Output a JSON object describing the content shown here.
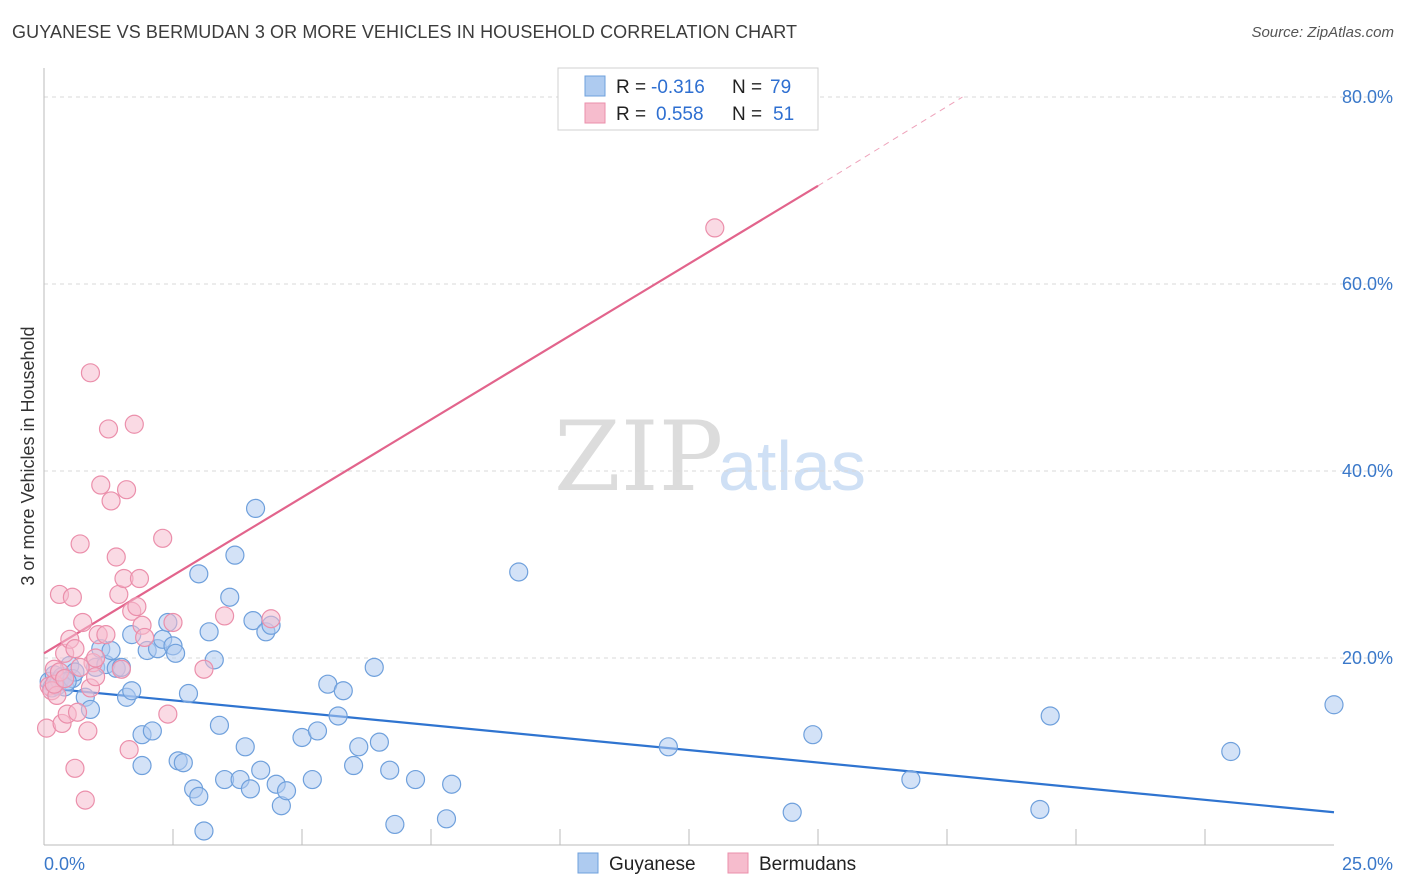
{
  "title": "GUYANESE VS BERMUDAN 3 OR MORE VEHICLES IN HOUSEHOLD CORRELATION CHART",
  "source": "Source: ZipAtlas.com",
  "watermark": {
    "zip": "ZIP",
    "atlas": "atlas"
  },
  "colors": {
    "guyanese_fill": "#aecbf0",
    "guyanese_stroke": "#6fa0dc",
    "guyanese_line": "#2f74d0",
    "bermudan_fill": "#f6bccd",
    "bermudan_stroke": "#eb8fab",
    "bermudan_line": "#e2648c",
    "axis_text": "#3a78c9",
    "grid": "#d9d9d9"
  },
  "legend": {
    "rows": [
      {
        "r_label": "R =",
        "r_value": "-0.316",
        "n_label": "N =",
        "n_value": "79"
      },
      {
        "r_label": "R =",
        "r_value": "0.558",
        "n_label": "N =",
        "n_value": "51"
      }
    ]
  },
  "chart_data": {
    "type": "scatter",
    "title": "GUYANESE VS BERMUDAN 3 OR MORE VEHICLES IN HOUSEHOLD CORRELATION CHART",
    "xlabel": "",
    "ylabel": "3 or more Vehicles in Household",
    "xlim": [
      0,
      25
    ],
    "ylim": [
      0,
      80
    ],
    "x_tick_labels": [
      "0.0%",
      "25.0%"
    ],
    "y_ticks": [
      20,
      40,
      60,
      80
    ],
    "y_tick_labels": [
      "20.0%",
      "40.0%",
      "60.0%",
      "80.0%"
    ],
    "grid": true,
    "legend_position": "top-center",
    "series": [
      {
        "name": "Guyanese",
        "r": -0.316,
        "n": 79,
        "trend": {
          "x0": 0.0,
          "y0": 16.8,
          "x1": 25.0,
          "y1": 3.5
        },
        "points": [
          [
            0.1,
            17.5
          ],
          [
            0.15,
            16.8
          ],
          [
            0.2,
            18.2
          ],
          [
            0.25,
            17.0
          ],
          [
            0.3,
            17.6
          ],
          [
            0.35,
            18.0
          ],
          [
            0.4,
            16.9
          ],
          [
            0.5,
            19.2
          ],
          [
            0.55,
            17.8
          ],
          [
            0.6,
            18.5
          ],
          [
            0.8,
            15.8
          ],
          [
            0.9,
            14.5
          ],
          [
            1.0,
            19.0
          ],
          [
            1.1,
            21.0
          ],
          [
            1.2,
            19.3
          ],
          [
            1.3,
            20.8
          ],
          [
            1.4,
            18.9
          ],
          [
            1.5,
            19.0
          ],
          [
            1.6,
            15.8
          ],
          [
            1.7,
            16.5
          ],
          [
            1.7,
            22.5
          ],
          [
            1.9,
            11.8
          ],
          [
            1.9,
            8.5
          ],
          [
            2.0,
            20.8
          ],
          [
            2.1,
            12.2
          ],
          [
            2.2,
            21.0
          ],
          [
            2.3,
            22.0
          ],
          [
            2.4,
            23.8
          ],
          [
            2.5,
            21.3
          ],
          [
            2.55,
            20.5
          ],
          [
            2.6,
            9.0
          ],
          [
            2.7,
            8.8
          ],
          [
            2.8,
            16.2
          ],
          [
            2.9,
            6.0
          ],
          [
            3.0,
            5.2
          ],
          [
            3.0,
            29.0
          ],
          [
            3.1,
            1.5
          ],
          [
            3.2,
            22.8
          ],
          [
            3.3,
            19.8
          ],
          [
            3.4,
            12.8
          ],
          [
            3.5,
            7.0
          ],
          [
            3.6,
            26.5
          ],
          [
            3.7,
            31.0
          ],
          [
            3.8,
            7.0
          ],
          [
            3.9,
            10.5
          ],
          [
            4.0,
            6.0
          ],
          [
            4.05,
            24.0
          ],
          [
            4.1,
            36.0
          ],
          [
            4.2,
            8.0
          ],
          [
            4.3,
            22.8
          ],
          [
            4.4,
            23.5
          ],
          [
            4.5,
            6.5
          ],
          [
            4.6,
            4.2
          ],
          [
            4.7,
            5.8
          ],
          [
            5.0,
            11.5
          ],
          [
            5.2,
            7.0
          ],
          [
            5.3,
            12.2
          ],
          [
            5.5,
            17.2
          ],
          [
            5.7,
            13.8
          ],
          [
            5.8,
            16.5
          ],
          [
            6.0,
            8.5
          ],
          [
            6.1,
            10.5
          ],
          [
            6.4,
            19.0
          ],
          [
            6.5,
            11.0
          ],
          [
            6.7,
            8.0
          ],
          [
            6.8,
            2.2
          ],
          [
            7.2,
            7.0
          ],
          [
            7.8,
            2.8
          ],
          [
            7.9,
            6.5
          ],
          [
            9.2,
            29.2
          ],
          [
            12.1,
            10.5
          ],
          [
            14.5,
            3.5
          ],
          [
            14.9,
            11.8
          ],
          [
            16.8,
            7.0
          ],
          [
            19.3,
            3.8
          ],
          [
            19.5,
            13.8
          ],
          [
            23.0,
            10.0
          ],
          [
            25.0,
            15.0
          ],
          [
            0.45,
            17.5
          ]
        ]
      },
      {
        "name": "Bermudans",
        "r": 0.558,
        "n": 51,
        "trend": {
          "x0": 0.0,
          "y0": 20.5,
          "x1": 15.0,
          "y1": 70.5
        },
        "trend_dashed_to": {
          "x": 17.8,
          "y": 80.0
        },
        "points": [
          [
            0.05,
            12.5
          ],
          [
            0.1,
            17.0
          ],
          [
            0.15,
            16.5
          ],
          [
            0.2,
            18.8
          ],
          [
            0.25,
            16.0
          ],
          [
            0.3,
            26.8
          ],
          [
            0.35,
            13.0
          ],
          [
            0.4,
            20.5
          ],
          [
            0.45,
            14.0
          ],
          [
            0.5,
            22.0
          ],
          [
            0.55,
            26.5
          ],
          [
            0.6,
            8.2
          ],
          [
            0.65,
            14.2
          ],
          [
            0.7,
            32.2
          ],
          [
            0.75,
            23.8
          ],
          [
            0.8,
            4.8
          ],
          [
            0.85,
            12.2
          ],
          [
            0.9,
            50.5
          ],
          [
            0.95,
            19.5
          ],
          [
            1.0,
            20.0
          ],
          [
            1.05,
            22.5
          ],
          [
            1.1,
            38.5
          ],
          [
            1.2,
            22.5
          ],
          [
            1.25,
            44.5
          ],
          [
            1.3,
            36.8
          ],
          [
            1.4,
            30.8
          ],
          [
            1.45,
            26.8
          ],
          [
            1.5,
            18.8
          ],
          [
            1.55,
            28.5
          ],
          [
            1.6,
            38.0
          ],
          [
            1.65,
            10.2
          ],
          [
            1.7,
            25.0
          ],
          [
            1.75,
            45.0
          ],
          [
            1.8,
            25.5
          ],
          [
            1.85,
            28.5
          ],
          [
            1.9,
            23.5
          ],
          [
            1.95,
            22.2
          ],
          [
            2.3,
            32.8
          ],
          [
            2.4,
            14.0
          ],
          [
            2.5,
            23.8
          ],
          [
            3.1,
            18.8
          ],
          [
            3.5,
            24.5
          ],
          [
            4.4,
            24.2
          ],
          [
            13.0,
            66.0
          ],
          [
            0.2,
            17.2
          ],
          [
            0.3,
            18.5
          ],
          [
            0.4,
            17.8
          ],
          [
            0.6,
            21.0
          ],
          [
            0.7,
            19.0
          ],
          [
            0.9,
            16.8
          ],
          [
            1.0,
            18.0
          ]
        ]
      }
    ]
  },
  "bottom_legend": {
    "items": [
      {
        "label": "Guyanese"
      },
      {
        "label": "Bermudans"
      }
    ]
  }
}
